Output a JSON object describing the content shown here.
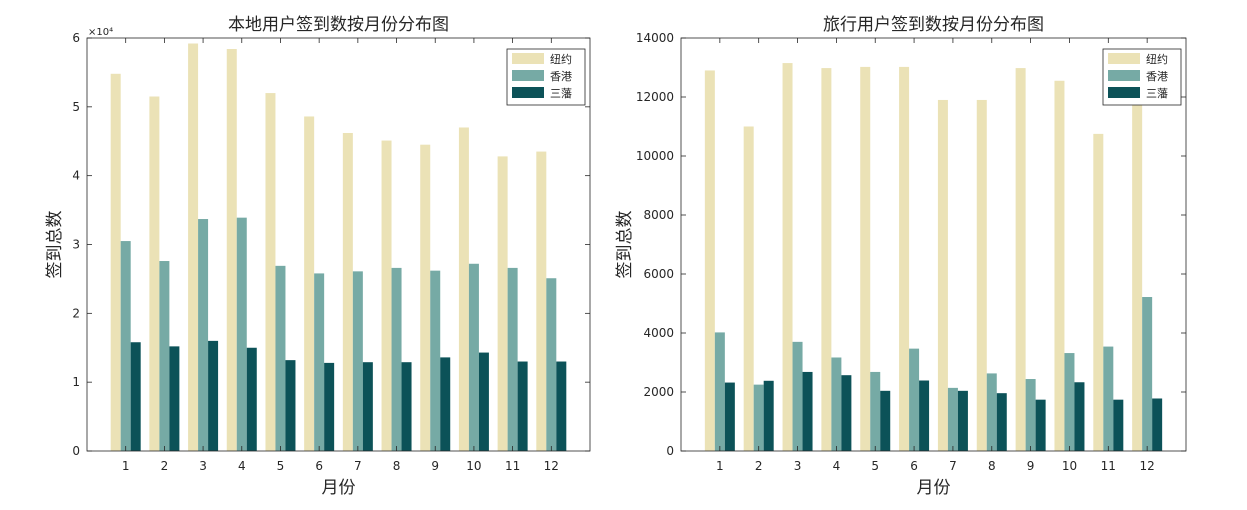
{
  "colors": {
    "series": [
      "#ebe2b6",
      "#76aaa5",
      "#0c5258"
    ],
    "axis": "#262626",
    "background": "#ffffff"
  },
  "chart_data": [
    {
      "type": "bar",
      "title": "本地用户签到数按月份分布图",
      "xlabel": "月份",
      "ylabel": "签到总数",
      "exponent_label": "×10⁴",
      "categories": [
        "1",
        "2",
        "3",
        "4",
        "5",
        "6",
        "7",
        "8",
        "9",
        "10",
        "11",
        "12"
      ],
      "ylim": [
        0,
        60000
      ],
      "yticks": [
        0,
        10000,
        20000,
        30000,
        40000,
        50000,
        60000
      ],
      "ytick_labels": [
        "0",
        "1",
        "2",
        "3",
        "4",
        "5",
        "6"
      ],
      "grid": false,
      "legend_position": "top-right",
      "series": [
        {
          "name": "纽约",
          "values": [
            54800,
            51500,
            59200,
            58400,
            52000,
            48600,
            46200,
            45100,
            44500,
            47000,
            42800,
            43500
          ]
        },
        {
          "name": "香港",
          "values": [
            30500,
            27600,
            33700,
            33900,
            26900,
            25800,
            26100,
            26600,
            26200,
            27200,
            26600,
            25100
          ]
        },
        {
          "name": "三藩",
          "values": [
            15800,
            15200,
            16000,
            15000,
            13200,
            12800,
            12900,
            12900,
            13600,
            14300,
            13000,
            13000
          ]
        }
      ]
    },
    {
      "type": "bar",
      "title": "旅行用户签到数按月份分布图",
      "xlabel": "月份",
      "ylabel": "签到总数",
      "categories": [
        "1",
        "2",
        "3",
        "4",
        "5",
        "6",
        "7",
        "8",
        "9",
        "10",
        "11",
        "12"
      ],
      "ylim": [
        0,
        14000
      ],
      "yticks": [
        0,
        2000,
        4000,
        6000,
        8000,
        10000,
        12000,
        14000
      ],
      "ytick_labels": [
        "0",
        "2000",
        "4000",
        "6000",
        "8000",
        "10000",
        "12000",
        "14000"
      ],
      "grid": false,
      "legend_position": "top-right",
      "series": [
        {
          "name": "纽约",
          "values": [
            12900,
            11000,
            13150,
            12980,
            13020,
            13020,
            11900,
            11900,
            12980,
            12550,
            10750,
            12000
          ]
        },
        {
          "name": "香港",
          "values": [
            4020,
            2250,
            3700,
            3170,
            2680,
            3470,
            2140,
            2630,
            2440,
            3320,
            3540,
            5220
          ]
        },
        {
          "name": "三藩",
          "values": [
            2320,
            2380,
            2680,
            2570,
            2040,
            2390,
            2040,
            1960,
            1740,
            2330,
            1740,
            1780
          ]
        }
      ]
    }
  ]
}
